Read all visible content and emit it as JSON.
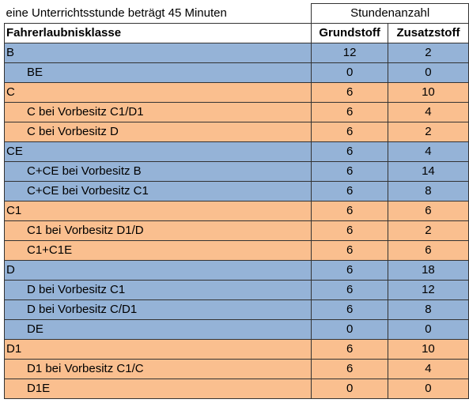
{
  "caption": "eine Unterrichtsstunde beträgt 45 Minuten",
  "group_header": "Stundenanzahl",
  "columns": [
    "Fahrerlaubnisklasse",
    "Grundstoff",
    "Zusatzstoff"
  ],
  "colors": {
    "blue": "#95b3d7",
    "orange": "#fabf8f"
  },
  "rows": [
    {
      "klasse": "B",
      "grund": "12",
      "zusatz": "2",
      "color": "blue",
      "sub": false
    },
    {
      "klasse": "BE",
      "grund": "0",
      "zusatz": "0",
      "color": "blue",
      "sub": true
    },
    {
      "klasse": "C",
      "grund": "6",
      "zusatz": "10",
      "color": "orange",
      "sub": false
    },
    {
      "klasse": "C bei Vorbesitz C1/D1",
      "grund": "6",
      "zusatz": "4",
      "color": "orange",
      "sub": true
    },
    {
      "klasse": "C bei Vorbesitz D",
      "grund": "6",
      "zusatz": "2",
      "color": "orange",
      "sub": true
    },
    {
      "klasse": "CE",
      "grund": "6",
      "zusatz": "4",
      "color": "blue",
      "sub": false
    },
    {
      "klasse": "C+CE bei Vorbesitz B",
      "grund": "6",
      "zusatz": "14",
      "color": "blue",
      "sub": true
    },
    {
      "klasse": "C+CE bei Vorbesitz C1",
      "grund": "6",
      "zusatz": "8",
      "color": "blue",
      "sub": true
    },
    {
      "klasse": "C1",
      "grund": "6",
      "zusatz": "6",
      "color": "orange",
      "sub": false
    },
    {
      "klasse": "C1 bei Vorbesitz D1/D",
      "grund": "6",
      "zusatz": "2",
      "color": "orange",
      "sub": true
    },
    {
      "klasse": "C1+C1E",
      "grund": "6",
      "zusatz": "6",
      "color": "orange",
      "sub": true
    },
    {
      "klasse": "D",
      "grund": "6",
      "zusatz": "18",
      "color": "blue",
      "sub": false
    },
    {
      "klasse": "D bei Vorbesitz C1",
      "grund": "6",
      "zusatz": "12",
      "color": "blue",
      "sub": true
    },
    {
      "klasse": "D bei Vorbesitz C/D1",
      "grund": "6",
      "zusatz": "8",
      "color": "blue",
      "sub": true
    },
    {
      "klasse": "DE",
      "grund": "0",
      "zusatz": "0",
      "color": "blue",
      "sub": true
    },
    {
      "klasse": "D1",
      "grund": "6",
      "zusatz": "10",
      "color": "orange",
      "sub": false
    },
    {
      "klasse": "D1 bei Vorbesitz C1/C",
      "grund": "6",
      "zusatz": "4",
      "color": "orange",
      "sub": true
    },
    {
      "klasse": "D1E",
      "grund": "0",
      "zusatz": "0",
      "color": "orange",
      "sub": true
    }
  ]
}
